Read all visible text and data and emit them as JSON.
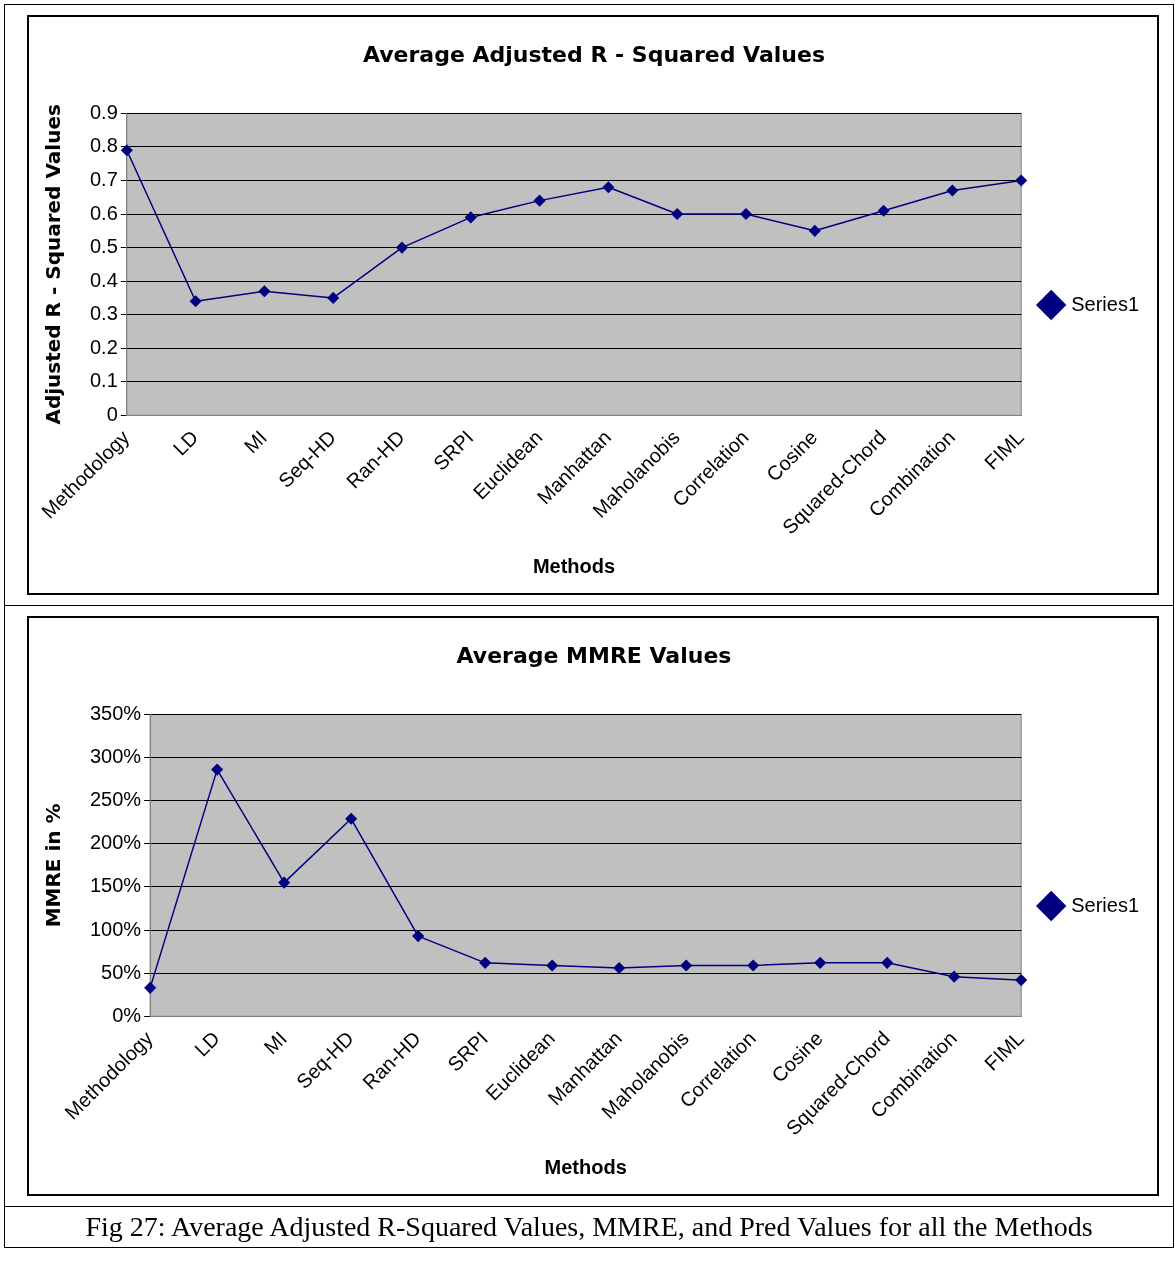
{
  "chart_data": [
    {
      "type": "line",
      "title": "Average Adjusted R - Squared Values",
      "xlabel": "Methods",
      "ylabel": "Adjusted R - Squared Values",
      "categories": [
        "Methodology",
        "LD",
        "MI",
        "Seq-HD",
        "Ran-HD",
        "SRPI",
        "Euclidean",
        "Manhattan",
        "Maholanobis",
        "Correlation",
        "Cosine",
        "Squared-Chord",
        "Combination",
        "FIML"
      ],
      "series": [
        {
          "name": "Series1",
          "color": "#000080",
          "values": [
            0.79,
            0.34,
            0.37,
            0.35,
            0.5,
            0.59,
            0.64,
            0.68,
            0.6,
            0.6,
            0.55,
            0.61,
            0.67,
            0.7
          ]
        }
      ],
      "ylim": [
        0,
        0.9
      ],
      "yticks": [
        0,
        0.1,
        0.2,
        0.3,
        0.4,
        0.5,
        0.6,
        0.7,
        0.8,
        0.9
      ],
      "grid": "y",
      "legend": "right",
      "marker": "diamond",
      "line_style": "solid"
    },
    {
      "type": "line",
      "title": "Average MMRE Values",
      "xlabel": "Methods",
      "ylabel": "MMRE in %",
      "categories": [
        "Methodology",
        "LD",
        "MI",
        "Seq-HD",
        "Ran-HD",
        "SRPI",
        "Euclidean",
        "Manhattan",
        "Maholanobis",
        "Correlation",
        "Cosine",
        "Squared-Chord",
        "Combination",
        "FIML"
      ],
      "series": [
        {
          "name": "Series1",
          "color": "#000080",
          "values": [
            33,
            286,
            155,
            229,
            93,
            62,
            59,
            56,
            59,
            59,
            62,
            62,
            46,
            42
          ]
        }
      ],
      "ylim": [
        0,
        350
      ],
      "yticks": [
        {
          "value": 0,
          "label": "0%"
        },
        {
          "value": 50,
          "label": "50%"
        },
        {
          "value": 100,
          "label": "100%"
        },
        {
          "value": 150,
          "label": "150%"
        },
        {
          "value": 200,
          "label": "200%"
        },
        {
          "value": 250,
          "label": "250%"
        },
        {
          "value": 300,
          "label": "300%"
        },
        {
          "value": 350,
          "label": "350%"
        }
      ],
      "grid": "y",
      "legend": "right",
      "marker": "diamond",
      "line_style": "solid",
      "annotations": [
        "Fig 27: Average Adjusted R-Squared Values, MMRE, and Pred Values for all the Methods"
      ]
    }
  ]
}
